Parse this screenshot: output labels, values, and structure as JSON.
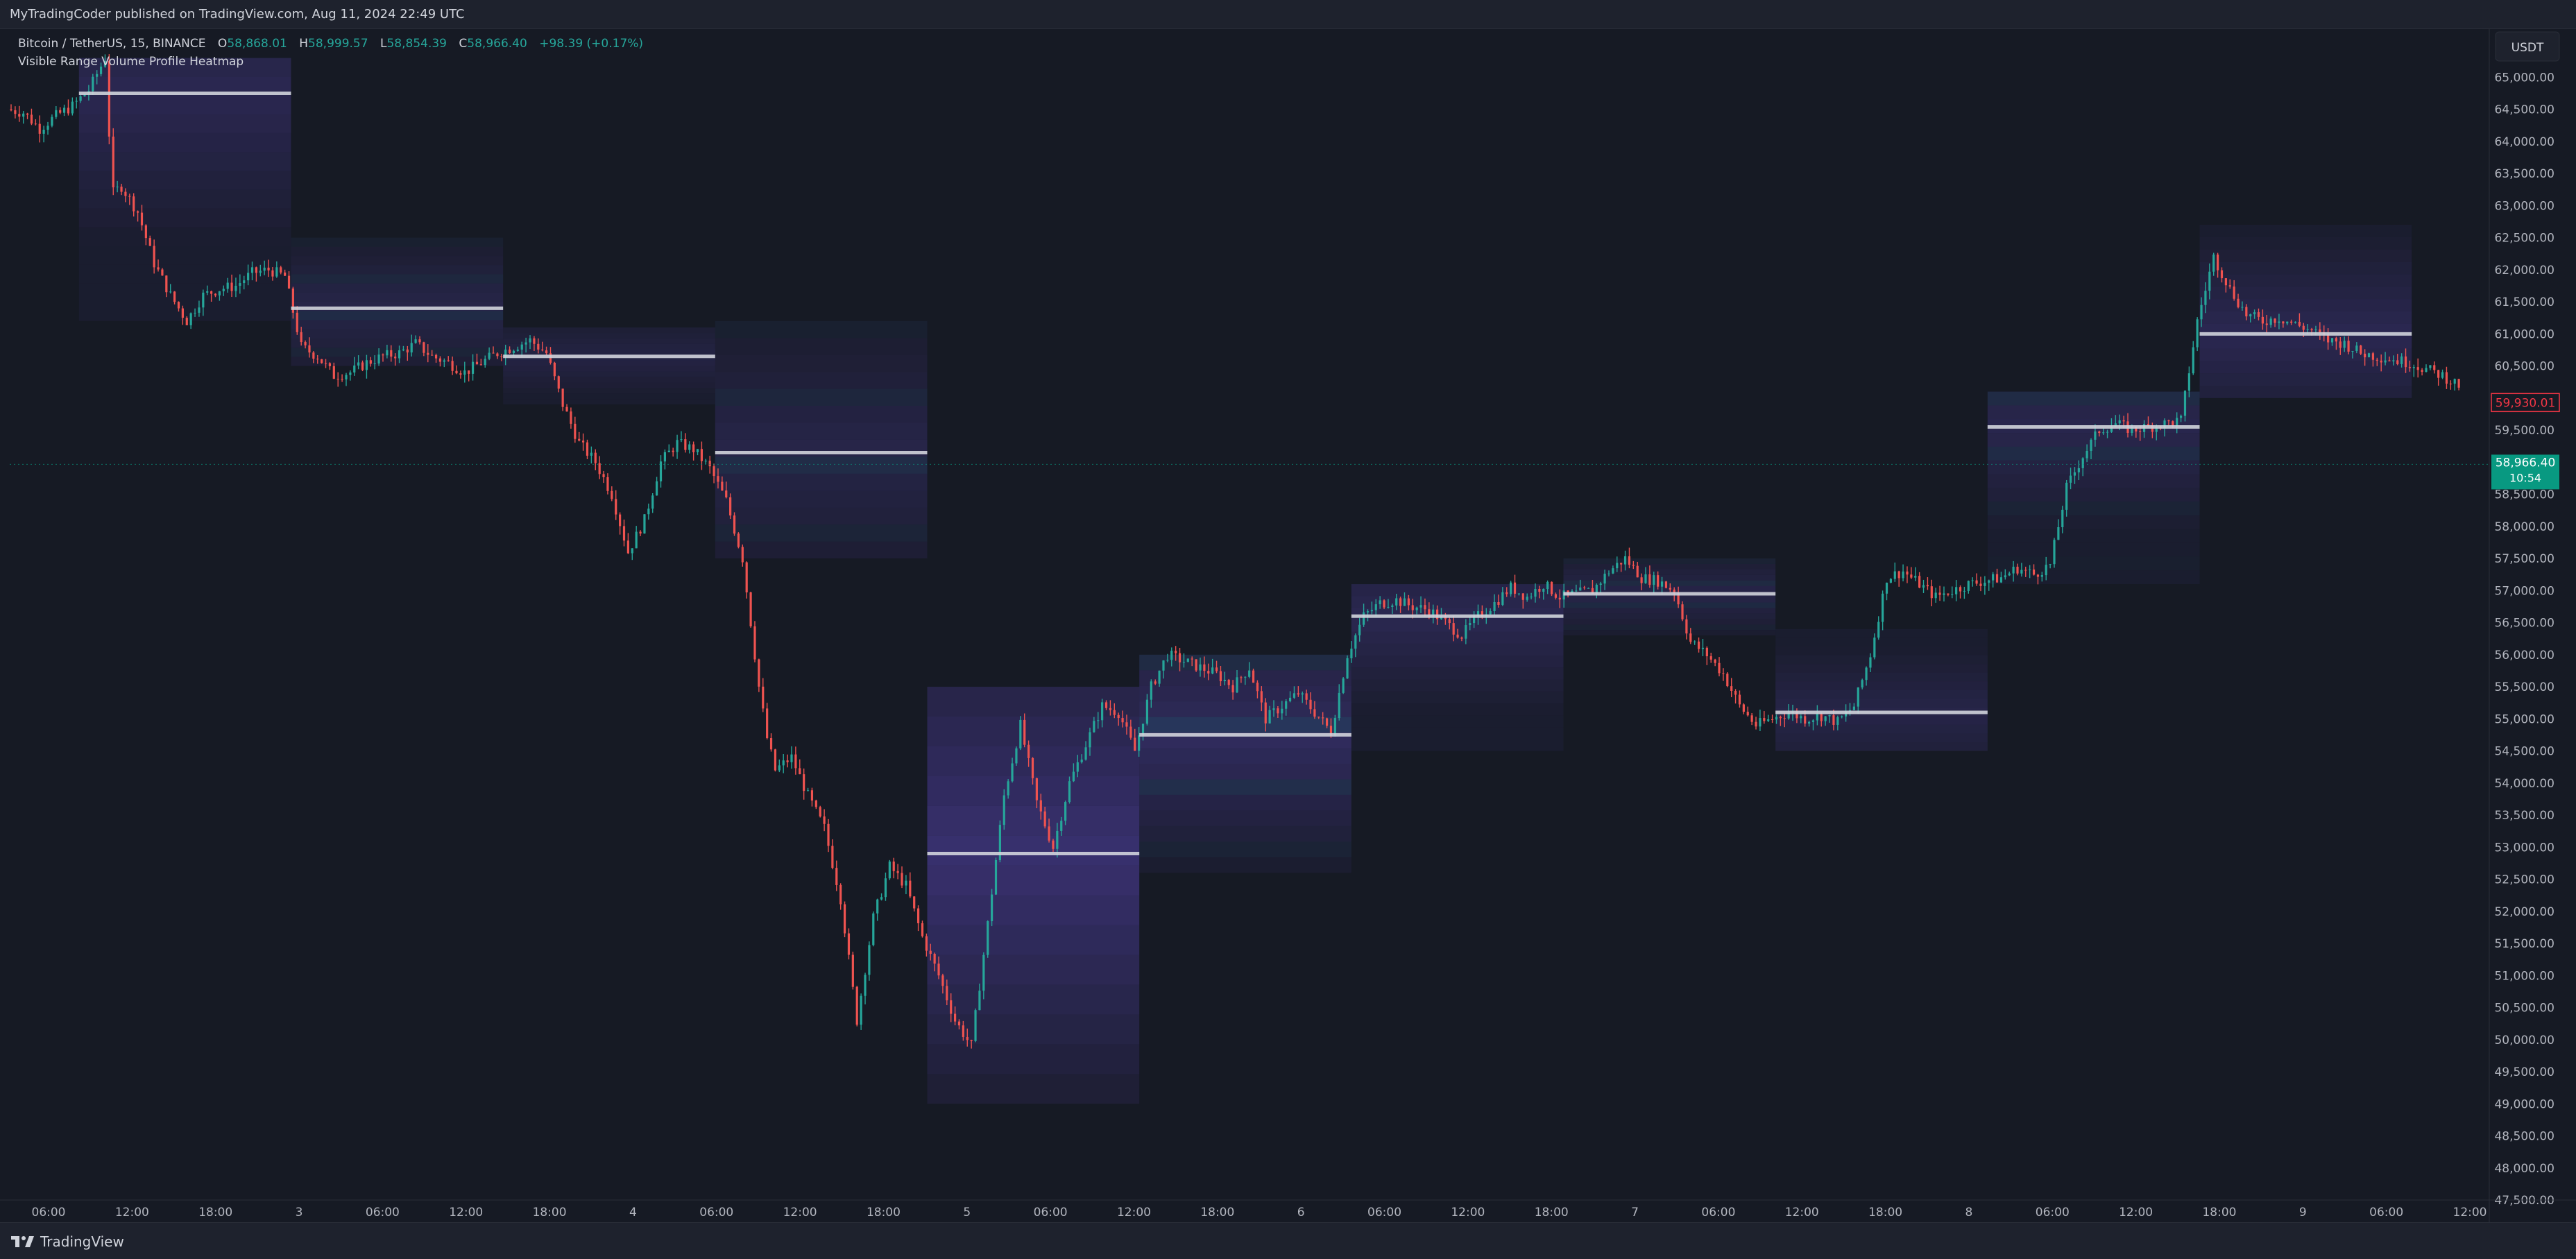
{
  "header": {
    "publisher_line": "MyTradingCoder published on TradingView.com, Aug 11, 2024 22:49 UTC"
  },
  "legend": {
    "symbol_line": "Bitcoin / TetherUS, 15, BINANCE",
    "open_label": "O",
    "open_value": "58,868.01",
    "high_label": "H",
    "high_value": "58,999.57",
    "low_label": "L",
    "low_value": "58,854.39",
    "close_label": "C",
    "close_value": "58,966.40",
    "change": "+98.39 (+0.17%)",
    "indicator_name": "Visible Range Volume Profile Heatmap"
  },
  "currency_button": "USDT",
  "footer": {
    "brand": "TradingView"
  },
  "colors": {
    "background": "#161a24",
    "up": "#26a69a",
    "down": "#ef5350",
    "poc_line": "#d1d4dc",
    "heat_purple": "#7b5cff",
    "heat_blue": "#5b8cff",
    "last_price_badge": "#089981",
    "marker_badge_border": "#f23645"
  },
  "chart_data": {
    "type": "candlestick",
    "symbol": "Bitcoin / TetherUS",
    "timeframe": "15",
    "exchange": "BINANCE",
    "ylim": [
      47500,
      65750
    ],
    "y_ticks": [
      "65,000.00",
      "64,500.00",
      "64,000.00",
      "63,500.00",
      "63,000.00",
      "62,500.00",
      "62,000.00",
      "61,500.00",
      "61,000.00",
      "60,500.00",
      "60,000.00",
      "59,500.00",
      "59,000.00",
      "58,500.00",
      "58,000.00",
      "57,500.00",
      "57,000.00",
      "56,500.00",
      "56,000.00",
      "55,500.00",
      "55,000.00",
      "54,500.00",
      "54,000.00",
      "53,500.00",
      "53,000.00",
      "52,500.00",
      "52,000.00",
      "51,500.00",
      "51,000.00",
      "50,500.00",
      "50,000.00",
      "49,500.00",
      "49,000.00",
      "48,500.00",
      "48,000.00",
      "47,500.00"
    ],
    "x_ticks": [
      "06:00",
      "12:00",
      "18:00",
      "3",
      "06:00",
      "12:00",
      "18:00",
      "4",
      "06:00",
      "12:00",
      "18:00",
      "5",
      "06:00",
      "12:00",
      "18:00",
      "6",
      "06:00",
      "12:00",
      "18:00",
      "7",
      "06:00",
      "12:00",
      "18:00",
      "8",
      "06:00",
      "12:00",
      "18:00",
      "9",
      "06:00",
      "12:00"
    ],
    "last_price": {
      "value": 58966.4,
      "label": "58,966.40",
      "countdown": "10:54"
    },
    "marker_price": {
      "value": 59930.01,
      "label": "59,930.01"
    },
    "path": [
      [
        0,
        64500
      ],
      [
        1,
        64450
      ],
      [
        2,
        64200
      ],
      [
        3,
        64400
      ],
      [
        4,
        64550
      ],
      [
        5,
        64800
      ],
      [
        6,
        65300
      ],
      [
        6.2,
        64300
      ],
      [
        6.5,
        63200
      ],
      [
        7,
        63300
      ],
      [
        8,
        62900
      ],
      [
        9,
        62100
      ],
      [
        10,
        61600
      ],
      [
        11,
        61200
      ],
      [
        12,
        61600
      ],
      [
        13,
        61700
      ],
      [
        14,
        61750
      ],
      [
        15,
        61950
      ],
      [
        16,
        62000
      ],
      [
        17,
        61900
      ],
      [
        18,
        60800
      ],
      [
        19,
        60650
      ],
      [
        20,
        60350
      ],
      [
        21,
        60400
      ],
      [
        22,
        60550
      ],
      [
        23,
        60650
      ],
      [
        24,
        60700
      ],
      [
        25,
        60850
      ],
      [
        26,
        60650
      ],
      [
        27,
        60550
      ],
      [
        28,
        60400
      ],
      [
        29,
        60550
      ],
      [
        30,
        60700
      ],
      [
        31,
        60800
      ],
      [
        32,
        60900
      ],
      [
        33,
        60700
      ],
      [
        34,
        59900
      ],
      [
        35,
        59300
      ],
      [
        36,
        59000
      ],
      [
        37,
        58500
      ],
      [
        38,
        57600
      ],
      [
        39,
        58100
      ],
      [
        40,
        59000
      ],
      [
        41,
        59300
      ],
      [
        42,
        59200
      ],
      [
        43,
        58900
      ],
      [
        44,
        58400
      ],
      [
        45,
        57500
      ],
      [
        46,
        55500
      ],
      [
        46.5,
        54700
      ],
      [
        47,
        54200
      ],
      [
        48,
        54400
      ],
      [
        49,
        53800
      ],
      [
        50,
        53300
      ],
      [
        51,
        52200
      ],
      [
        52,
        50300
      ],
      [
        53,
        51900
      ],
      [
        54,
        52700
      ],
      [
        55,
        52400
      ],
      [
        56,
        51600
      ],
      [
        57,
        51000
      ],
      [
        58,
        50300
      ],
      [
        59,
        49900
      ],
      [
        60,
        51800
      ],
      [
        61,
        53800
      ],
      [
        62,
        54900
      ],
      [
        63,
        53700
      ],
      [
        64,
        53000
      ],
      [
        65,
        54000
      ],
      [
        66,
        54600
      ],
      [
        67,
        55200
      ],
      [
        68,
        55100
      ],
      [
        69,
        54500
      ],
      [
        70,
        55500
      ],
      [
        71,
        56000
      ],
      [
        72,
        55900
      ],
      [
        73,
        55800
      ],
      [
        74,
        55700
      ],
      [
        75,
        55500
      ],
      [
        76,
        55800
      ],
      [
        77,
        55000
      ],
      [
        78,
        55200
      ],
      [
        79,
        55400
      ],
      [
        80,
        55100
      ],
      [
        81,
        54800
      ],
      [
        82,
        56000
      ],
      [
        83,
        56600
      ],
      [
        84,
        56800
      ],
      [
        85,
        56850
      ],
      [
        86,
        56750
      ],
      [
        87,
        56700
      ],
      [
        88,
        56500
      ],
      [
        89,
        56300
      ],
      [
        90,
        56600
      ],
      [
        91,
        56800
      ],
      [
        92,
        57050
      ],
      [
        93,
        56900
      ],
      [
        94,
        57100
      ],
      [
        95,
        56900
      ],
      [
        96,
        56950
      ],
      [
        97,
        57000
      ],
      [
        98,
        57300
      ],
      [
        99,
        57500
      ],
      [
        100,
        57200
      ],
      [
        101,
        57150
      ],
      [
        102,
        57000
      ],
      [
        103,
        56200
      ],
      [
        104,
        56000
      ],
      [
        105,
        55700
      ],
      [
        106,
        55200
      ],
      [
        107,
        54900
      ],
      [
        108,
        55000
      ],
      [
        109,
        55100
      ],
      [
        110,
        55000
      ],
      [
        111,
        55050
      ],
      [
        112,
        54950
      ],
      [
        113,
        55200
      ],
      [
        114,
        56000
      ],
      [
        115,
        57200
      ],
      [
        116,
        57300
      ],
      [
        117,
        57100
      ],
      [
        118,
        56900
      ],
      [
        119,
        57000
      ],
      [
        120,
        57100
      ],
      [
        121,
        57150
      ],
      [
        122,
        57200
      ],
      [
        123,
        57350
      ],
      [
        124,
        57250
      ],
      [
        125,
        57400
      ],
      [
        126,
        58600
      ],
      [
        127,
        59100
      ],
      [
        128,
        59500
      ],
      [
        129,
        59600
      ],
      [
        130,
        59500
      ],
      [
        131,
        59550
      ],
      [
        132,
        59600
      ],
      [
        133,
        59650
      ],
      [
        134,
        61200
      ],
      [
        135,
        62200
      ],
      [
        136,
        61700
      ],
      [
        137,
        61300
      ],
      [
        138,
        61200
      ],
      [
        139,
        61250
      ],
      [
        140,
        61150
      ],
      [
        141,
        61050
      ],
      [
        142,
        60900
      ],
      [
        143,
        60850
      ],
      [
        144,
        60700
      ],
      [
        145,
        60650
      ],
      [
        146,
        60600
      ],
      [
        147,
        60550
      ],
      [
        148,
        60450
      ],
      [
        149,
        60350
      ],
      [
        150,
        60200
      ]
    ],
    "profile_blocks": [
      {
        "bar_start": 4,
        "bar_end": 17,
        "low": 61200,
        "high": 65300,
        "poc": 64750,
        "intensity": 0.55
      },
      {
        "bar_start": 17,
        "bar_end": 30,
        "low": 60500,
        "high": 62500,
        "poc": 61400,
        "intensity": 0.45
      },
      {
        "bar_start": 30,
        "bar_end": 43,
        "low": 59900,
        "high": 61100,
        "poc": 60650,
        "intensity": 0.4
      },
      {
        "bar_start": 43,
        "bar_end": 56,
        "low": 57500,
        "high": 61200,
        "poc": 59150,
        "intensity": 0.45
      },
      {
        "bar_start": 56,
        "bar_end": 69,
        "low": 49000,
        "high": 55500,
        "poc": 52900,
        "intensity": 0.9
      },
      {
        "bar_start": 69,
        "bar_end": 82,
        "low": 52600,
        "high": 56000,
        "poc": 54750,
        "intensity": 0.7
      },
      {
        "bar_start": 82,
        "bar_end": 95,
        "low": 54500,
        "high": 57100,
        "poc": 56600,
        "intensity": 0.55
      },
      {
        "bar_start": 95,
        "bar_end": 108,
        "low": 56300,
        "high": 57500,
        "poc": 56950,
        "intensity": 0.45
      },
      {
        "bar_start": 108,
        "bar_end": 121,
        "low": 54500,
        "high": 56400,
        "poc": 55100,
        "intensity": 0.45
      },
      {
        "bar_start": 121,
        "bar_end": 134,
        "low": 57100,
        "high": 60100,
        "poc": 59550,
        "intensity": 0.5
      },
      {
        "bar_start": 134,
        "bar_end": 147,
        "low": 60000,
        "high": 62700,
        "poc": 61000,
        "intensity": 0.55
      }
    ]
  }
}
